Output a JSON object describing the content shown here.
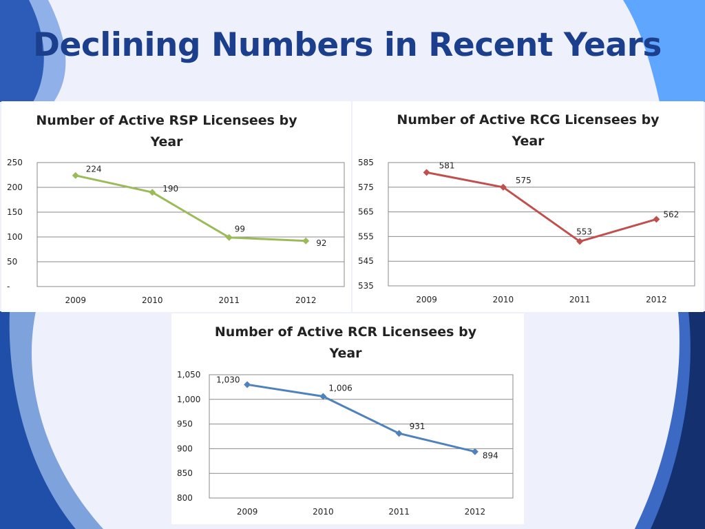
{
  "slide": {
    "title": "Declining Numbers in Recent Years",
    "colors": {
      "title": "#1b3f8c",
      "background": "#eef0fb",
      "accent_dark": "#0f2a6e",
      "accent_light": "#5ea6ff"
    }
  },
  "chart_data": [
    {
      "type": "line",
      "title_lines": [
        "Number of Active RSP Licensees by",
        "Year"
      ],
      "categories": [
        "2009",
        "2010",
        "2011",
        "2012"
      ],
      "series": [
        {
          "values": [
            224,
            190,
            99,
            92
          ],
          "color": "#9bbb59"
        }
      ],
      "data_labels": [
        "224",
        "190",
        "99",
        "92"
      ],
      "ylim": [
        0,
        250
      ],
      "yticks": [
        0,
        50,
        100,
        150,
        200,
        250
      ],
      "ytick_labels": [
        "-",
        "50",
        "100",
        "150",
        "200",
        "250"
      ],
      "grid": true,
      "legend": "none"
    },
    {
      "type": "line",
      "title_lines": [
        "Number of Active RCG Licensees by",
        "Year"
      ],
      "categories": [
        "2009",
        "2010",
        "2011",
        "2012"
      ],
      "series": [
        {
          "values": [
            581,
            575,
            553,
            562
          ],
          "color": "#c0504d"
        }
      ],
      "data_labels": [
        "581",
        "575",
        "553",
        "562"
      ],
      "ylim": [
        535,
        585
      ],
      "yticks": [
        535,
        545,
        555,
        565,
        575,
        585
      ],
      "ytick_labels": [
        "535",
        "545",
        "555",
        "565",
        "575",
        "585"
      ],
      "grid": true,
      "legend": "none"
    },
    {
      "type": "line",
      "title_lines": [
        "Number of Active RCR Licensees by",
        "Year"
      ],
      "categories": [
        "2009",
        "2010",
        "2011",
        "2012"
      ],
      "series": [
        {
          "values": [
            1030,
            1006,
            931,
            894
          ],
          "color": "#4f81bd"
        }
      ],
      "data_labels": [
        "1,030",
        "1,006",
        "931",
        "894"
      ],
      "ylim": [
        800,
        1050
      ],
      "yticks": [
        800,
        850,
        900,
        950,
        1000,
        1050
      ],
      "ytick_labels": [
        "800",
        "850",
        "900",
        "950",
        "1,000",
        "1,050"
      ],
      "grid": true,
      "legend": "none"
    }
  ]
}
